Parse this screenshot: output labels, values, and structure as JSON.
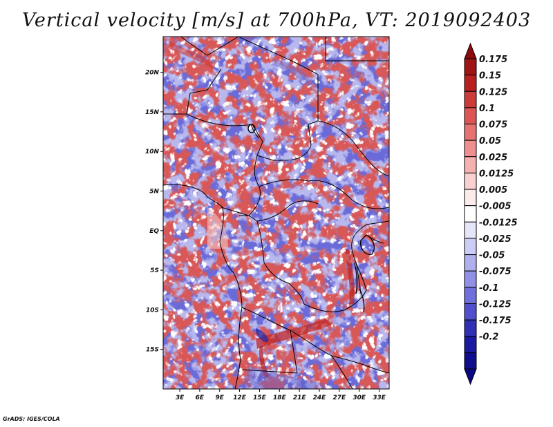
{
  "title": "Vertical velocity [m/s] at 700hPa, VT: 2019092403",
  "credit": "GrADS: IGES/COLA",
  "map": {
    "lat_ticks": [
      "20N",
      "15N",
      "10N",
      "5N",
      "EQ",
      "5S",
      "10S",
      "15S"
    ],
    "lat_values": [
      20,
      15,
      10,
      5,
      0,
      -5,
      -10,
      -15
    ],
    "lon_ticks": [
      "3E",
      "6E",
      "9E",
      "12E",
      "15E",
      "18E",
      "21E",
      "24E",
      "27E",
      "30E",
      "33E"
    ],
    "lon_values": [
      3,
      6,
      9,
      12,
      15,
      18,
      21,
      24,
      27,
      30,
      33
    ],
    "lat_range": [
      -20,
      24.5
    ],
    "lon_range": [
      0.5,
      34.5
    ]
  },
  "colorbar": {
    "labels": [
      "0.175",
      "0.15",
      "0.125",
      "0.1",
      "0.075",
      "0.05",
      "0.025",
      "0.0125",
      "0.005",
      "-0.005",
      "-0.0125",
      "-0.025",
      "-0.05",
      "-0.075",
      "-0.1",
      "-0.125",
      "-0.175",
      "-0.2"
    ],
    "colors": [
      "#a01416",
      "#b82020",
      "#cc3a3a",
      "#dc5656",
      "#e67272",
      "#ee9090",
      "#f5b0b0",
      "#fad0d0",
      "#fdebeb",
      "#ffffff",
      "#e6e6fb",
      "#ccccf6",
      "#b0b0ef",
      "#9090e6",
      "#7070dc",
      "#5050cc",
      "#3030b4",
      "#1a1aa0",
      "#0e0e8c"
    ],
    "top_arrow_color": "#8c0a0e",
    "bottom_arrow_color": "#0a0a80"
  }
}
